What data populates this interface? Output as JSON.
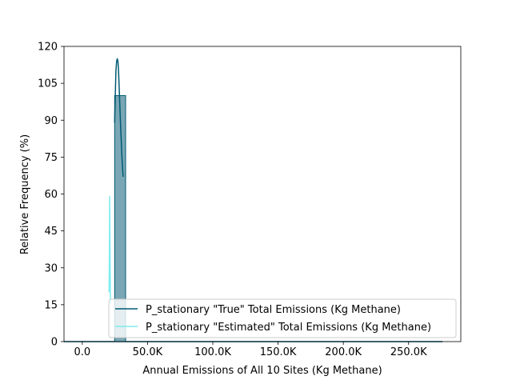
{
  "chart_data": {
    "type": "histogram",
    "title": "",
    "xlabel": "Annual Emissions of All 10 Sites (Kg Methane)",
    "ylabel": "Relative Frequency (%)",
    "xlim": [
      -14000,
      290000
    ],
    "ylim": [
      0,
      120
    ],
    "xticks": [
      0,
      50000,
      100000,
      150000,
      200000,
      250000
    ],
    "xtick_labels": [
      "0.0",
      "50.0K",
      "100.0K",
      "150.0K",
      "200.0K",
      "250.0K"
    ],
    "yticks": [
      0,
      15,
      30,
      45,
      60,
      75,
      90,
      105,
      120
    ],
    "ytick_labels": [
      "0",
      "15",
      "30",
      "45",
      "60",
      "75",
      "90",
      "105",
      "120"
    ],
    "grid": false,
    "legend": "lower-right",
    "bars": [
      {
        "series": "P_stationary \"True\" Total Emissions (Kg Methane)",
        "x0": 24800,
        "x1": 33200,
        "value": 100
      }
    ],
    "series": [
      {
        "name": "P_stationary \"True\" Total Emissions (Kg Methane)",
        "color": "#005b73",
        "bar_fill": "#7aa7b5",
        "kde": {
          "x": [
            24800,
            25300,
            25800,
            26300,
            26800,
            27300,
            27800,
            28300,
            28800,
            29300,
            29800,
            30300,
            30800,
            31300
          ],
          "y": [
            89,
            100,
            110,
            114,
            115,
            114,
            110,
            103,
            96,
            89,
            82,
            76,
            71,
            67
          ]
        }
      },
      {
        "name": "P_stationary \"Estimated\" Total Emissions (Kg Methane)",
        "color": "#7fecef",
        "kde": {
          "x": [
            20500,
            20700,
            20850,
            21000,
            21150,
            21300,
            21500,
            21700
          ],
          "y": [
            20,
            30,
            45,
            59,
            50,
            35,
            22,
            15
          ]
        }
      }
    ],
    "baseline": {
      "x": [
        -14000,
        276000
      ],
      "y": [
        0,
        0
      ]
    }
  }
}
